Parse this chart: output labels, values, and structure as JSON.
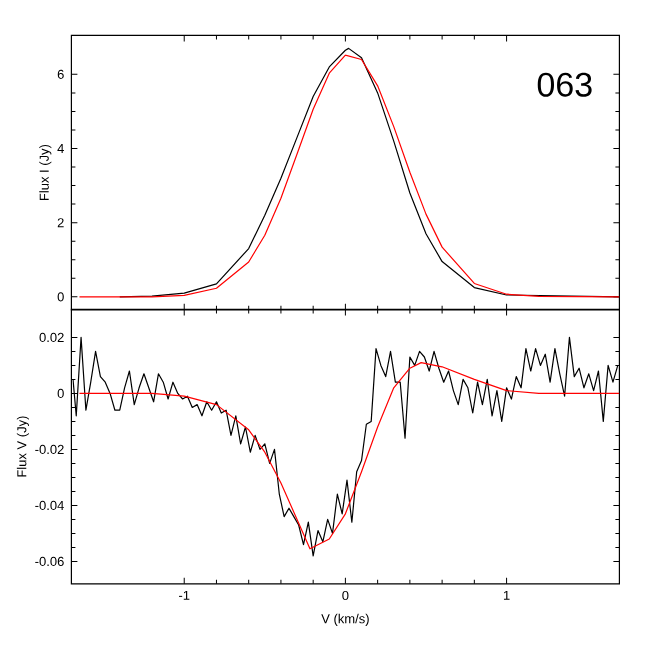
{
  "chart_data": [
    {
      "type": "line",
      "ylabel": "Flux I (Jy)",
      "annotations": [
        "063"
      ],
      "xlim": [
        -1.7,
        1.7
      ],
      "ylim": [
        -0.35,
        7.05
      ],
      "xticks": [
        -1,
        0,
        1
      ],
      "yticks": [
        0,
        2,
        4,
        6
      ],
      "tick_labels": "y",
      "series": [
        {
          "color": "#000000",
          "x": [
            -1.4,
            -1.2,
            -1.0,
            -0.8,
            -0.6,
            -0.5,
            -0.4,
            -0.3,
            -0.2,
            -0.1,
            0,
            0.02,
            0.1,
            0.2,
            0.3,
            0.4,
            0.5,
            0.6,
            0.8,
            1.0,
            1.7
          ],
          "values": [
            0,
            0.02,
            0.1,
            0.35,
            1.3,
            2.2,
            3.2,
            4.3,
            5.4,
            6.2,
            6.65,
            6.7,
            6.45,
            5.5,
            4.2,
            2.8,
            1.7,
            0.95,
            0.25,
            0.05,
            0
          ]
        },
        {
          "color": "#ff0000",
          "x": [
            -1.65,
            -1.4,
            -1.2,
            -1.0,
            -0.8,
            -0.6,
            -0.5,
            -0.4,
            -0.3,
            -0.2,
            -0.1,
            0,
            0.1,
            0.2,
            0.3,
            0.4,
            0.5,
            0.6,
            0.8,
            1.0,
            1.2,
            1.7
          ],
          "values": [
            0,
            0,
            0,
            0.04,
            0.23,
            0.94,
            1.66,
            2.66,
            3.85,
            5.06,
            6.03,
            6.52,
            6.4,
            5.69,
            4.59,
            3.36,
            2.23,
            1.34,
            0.36,
            0.07,
            0.01,
            0
          ]
        }
      ]
    },
    {
      "type": "line",
      "xlabel": "V (km/s)",
      "ylabel": "Flux V (Jy)",
      "xlim": [
        -1.7,
        1.7
      ],
      "ylim": [
        -0.068,
        0.03
      ],
      "xticks": [
        -1,
        0,
        1
      ],
      "yticks": [
        -0.06,
        -0.04,
        -0.02,
        0,
        0.02
      ],
      "series": [
        {
          "color": "#000000",
          "x": [
            -1.69,
            -1.67,
            -1.64,
            -1.61,
            -1.58,
            -1.55,
            -1.52,
            -1.49,
            -1.46,
            -1.43,
            -1.4,
            -1.37,
            -1.34,
            -1.31,
            -1.28,
            -1.25,
            -1.22,
            -1.19,
            -1.16,
            -1.13,
            -1.1,
            -1.07,
            -1.04,
            -1.01,
            -0.98,
            -0.95,
            -0.92,
            -0.89,
            -0.86,
            -0.83,
            -0.8,
            -0.77,
            -0.74,
            -0.71,
            -0.68,
            -0.65,
            -0.62,
            -0.59,
            -0.56,
            -0.53,
            -0.5,
            -0.47,
            -0.44,
            -0.41,
            -0.38,
            -0.35,
            -0.32,
            -0.29,
            -0.26,
            -0.23,
            -0.2,
            -0.17,
            -0.14,
            -0.11,
            -0.08,
            -0.05,
            -0.02,
            0.01,
            0.04,
            0.07,
            0.1,
            0.13,
            0.16,
            0.19,
            0.22,
            0.25,
            0.28,
            0.31,
            0.34,
            0.37,
            0.4,
            0.43,
            0.46,
            0.49,
            0.52,
            0.55,
            0.58,
            0.61,
            0.64,
            0.67,
            0.7,
            0.73,
            0.76,
            0.79,
            0.82,
            0.85,
            0.88,
            0.91,
            0.94,
            0.97,
            1.0,
            1.03,
            1.06,
            1.09,
            1.12,
            1.15,
            1.18,
            1.21,
            1.24,
            1.27,
            1.3,
            1.33,
            1.36,
            1.39,
            1.42,
            1.45,
            1.48,
            1.51,
            1.54,
            1.57,
            1.6,
            1.63,
            1.66,
            1.69
          ],
          "values": [
            0.005,
            -0.008,
            0.02,
            -0.006,
            0.004,
            0.015,
            0.006,
            0.004,
            0.0,
            -0.006,
            -0.006,
            0.002,
            0.008,
            -0.004,
            0.002,
            0.007,
            0.002,
            -0.003,
            0.007,
            0.004,
            -0.002,
            0.004,
            0.0,
            -0.002,
            -0.001,
            -0.005,
            -0.004,
            -0.008,
            -0.003,
            -0.006,
            -0.003,
            -0.007,
            -0.006,
            -0.015,
            -0.008,
            -0.018,
            -0.012,
            -0.021,
            -0.015,
            -0.02,
            -0.018,
            -0.025,
            -0.02,
            -0.036,
            -0.044,
            -0.041,
            -0.044,
            -0.047,
            -0.054,
            -0.046,
            -0.058,
            -0.049,
            -0.053,
            -0.045,
            -0.05,
            -0.036,
            -0.043,
            -0.031,
            -0.046,
            -0.028,
            -0.024,
            -0.011,
            -0.01,
            0.016,
            0.01,
            0.006,
            0.015,
            0.004,
            0.004,
            -0.016,
            0.013,
            0.01,
            0.015,
            0.013,
            0.008,
            0.015,
            0.009,
            0.004,
            0.008,
            0.001,
            -0.004,
            0.005,
            0.002,
            -0.007,
            0.004,
            -0.004,
            0.005,
            -0.008,
            0.001,
            -0.01,
            0.002,
            -0.002,
            0.006,
            0.002,
            0.016,
            0.008,
            0.016,
            0.01,
            0.014,
            0.004,
            0.016,
            0.007,
            -0.001,
            0.02,
            0.006,
            0.009,
            0.002,
            0.007,
            0.001,
            0.008,
            -0.01,
            0.01,
            0.004,
            0.01
          ]
        },
        {
          "color": "#ff0000",
          "x": [
            -1.65,
            -1.2,
            -1.0,
            -0.8,
            -0.6,
            -0.5,
            -0.4,
            -0.3,
            -0.22,
            -0.1,
            0,
            0.1,
            0.2,
            0.3,
            0.4,
            0.47,
            0.6,
            0.8,
            1.0,
            1.2,
            1.7
          ],
          "values": [
            0,
            0,
            -0.001,
            -0.004,
            -0.013,
            -0.021,
            -0.032,
            -0.045,
            -0.0555,
            -0.052,
            -0.043,
            -0.028,
            -0.012,
            0.002,
            0.009,
            0.011,
            0.0095,
            0.005,
            0.001,
            0,
            0
          ]
        }
      ]
    }
  ]
}
